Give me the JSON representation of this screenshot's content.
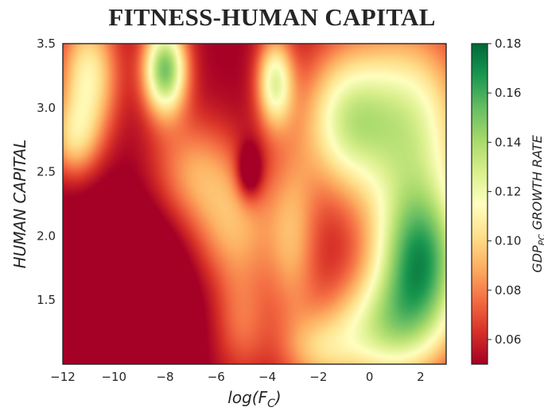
{
  "chart_data": {
    "type": "heatmap",
    "title": "FITNESS-HUMAN CAPITAL",
    "xlabel_base": "log(F",
    "xlabel_sub": "C",
    "xlabel_close": ")",
    "ylabel": "HUMAN CAPITAL",
    "colorbar_label_base": "GDP",
    "colorbar_label_sub": "PC",
    "colorbar_label_rest": " GROWTH RATE",
    "xlim": [
      -12,
      3
    ],
    "ylim": [
      1.0,
      3.5
    ],
    "xticks": [
      "−12",
      "−10",
      "−8",
      "−6",
      "−4",
      "−2",
      "0",
      "2"
    ],
    "xtick_values": [
      -12,
      -10,
      -8,
      -6,
      -4,
      -2,
      0,
      2
    ],
    "yticks": [
      "1.5",
      "2.0",
      "2.5",
      "3.0",
      "3.5"
    ],
    "ytick_values": [
      1.5,
      2.0,
      2.5,
      3.0,
      3.5
    ],
    "colorbar_range": [
      0.05,
      0.18
    ],
    "colorbar_ticks": [
      "0.06",
      "0.08",
      "0.10",
      "0.12",
      "0.14",
      "0.16",
      "0.18"
    ],
    "colorbar_tick_values": [
      0.06,
      0.08,
      0.1,
      0.12,
      0.14,
      0.16,
      0.18
    ],
    "colormap": "RdYlGn",
    "background_value": 0.05,
    "kernels": [
      {
        "x": -11.0,
        "y": 3.25,
        "value": 0.06,
        "sx": 0.8,
        "sy": 0.35
      },
      {
        "x": -11.6,
        "y": 2.75,
        "value": 0.04,
        "sx": 0.7,
        "sy": 0.22
      },
      {
        "x": -8.0,
        "y": 3.3,
        "value": 0.1,
        "sx": 0.6,
        "sy": 0.25
      },
      {
        "x": -6.9,
        "y": 2.5,
        "value": 0.035,
        "sx": 1.2,
        "sy": 0.3
      },
      {
        "x": -5.3,
        "y": 2.05,
        "value": 0.04,
        "sx": 1.2,
        "sy": 0.35
      },
      {
        "x": -5.0,
        "y": 1.3,
        "value": 0.025,
        "sx": 0.8,
        "sy": 0.3
      },
      {
        "x": -3.7,
        "y": 3.2,
        "value": 0.07,
        "sx": 0.5,
        "sy": 0.25
      },
      {
        "x": -3.0,
        "y": 2.0,
        "value": 0.035,
        "sx": 0.7,
        "sy": 0.5
      },
      {
        "x": -1.0,
        "y": 2.9,
        "value": 0.06,
        "sx": 1.2,
        "sy": 0.4
      },
      {
        "x": 1.5,
        "y": 2.9,
        "value": 0.07,
        "sx": 1.6,
        "sy": 0.5
      },
      {
        "x": 2.0,
        "y": 1.8,
        "value": 0.11,
        "sx": 1.3,
        "sy": 0.45
      },
      {
        "x": 0.3,
        "y": 1.25,
        "value": 0.06,
        "sx": 1.6,
        "sy": 0.3
      },
      {
        "x": -2.0,
        "y": 1.1,
        "value": 0.03,
        "sx": 1.0,
        "sy": 0.2
      },
      {
        "x": -4.7,
        "y": 2.5,
        "value": -0.04,
        "sx": 0.35,
        "sy": 0.15
      },
      {
        "x": -9.5,
        "y": 1.6,
        "value": -0.03,
        "sx": 2.0,
        "sy": 0.5
      }
    ]
  }
}
